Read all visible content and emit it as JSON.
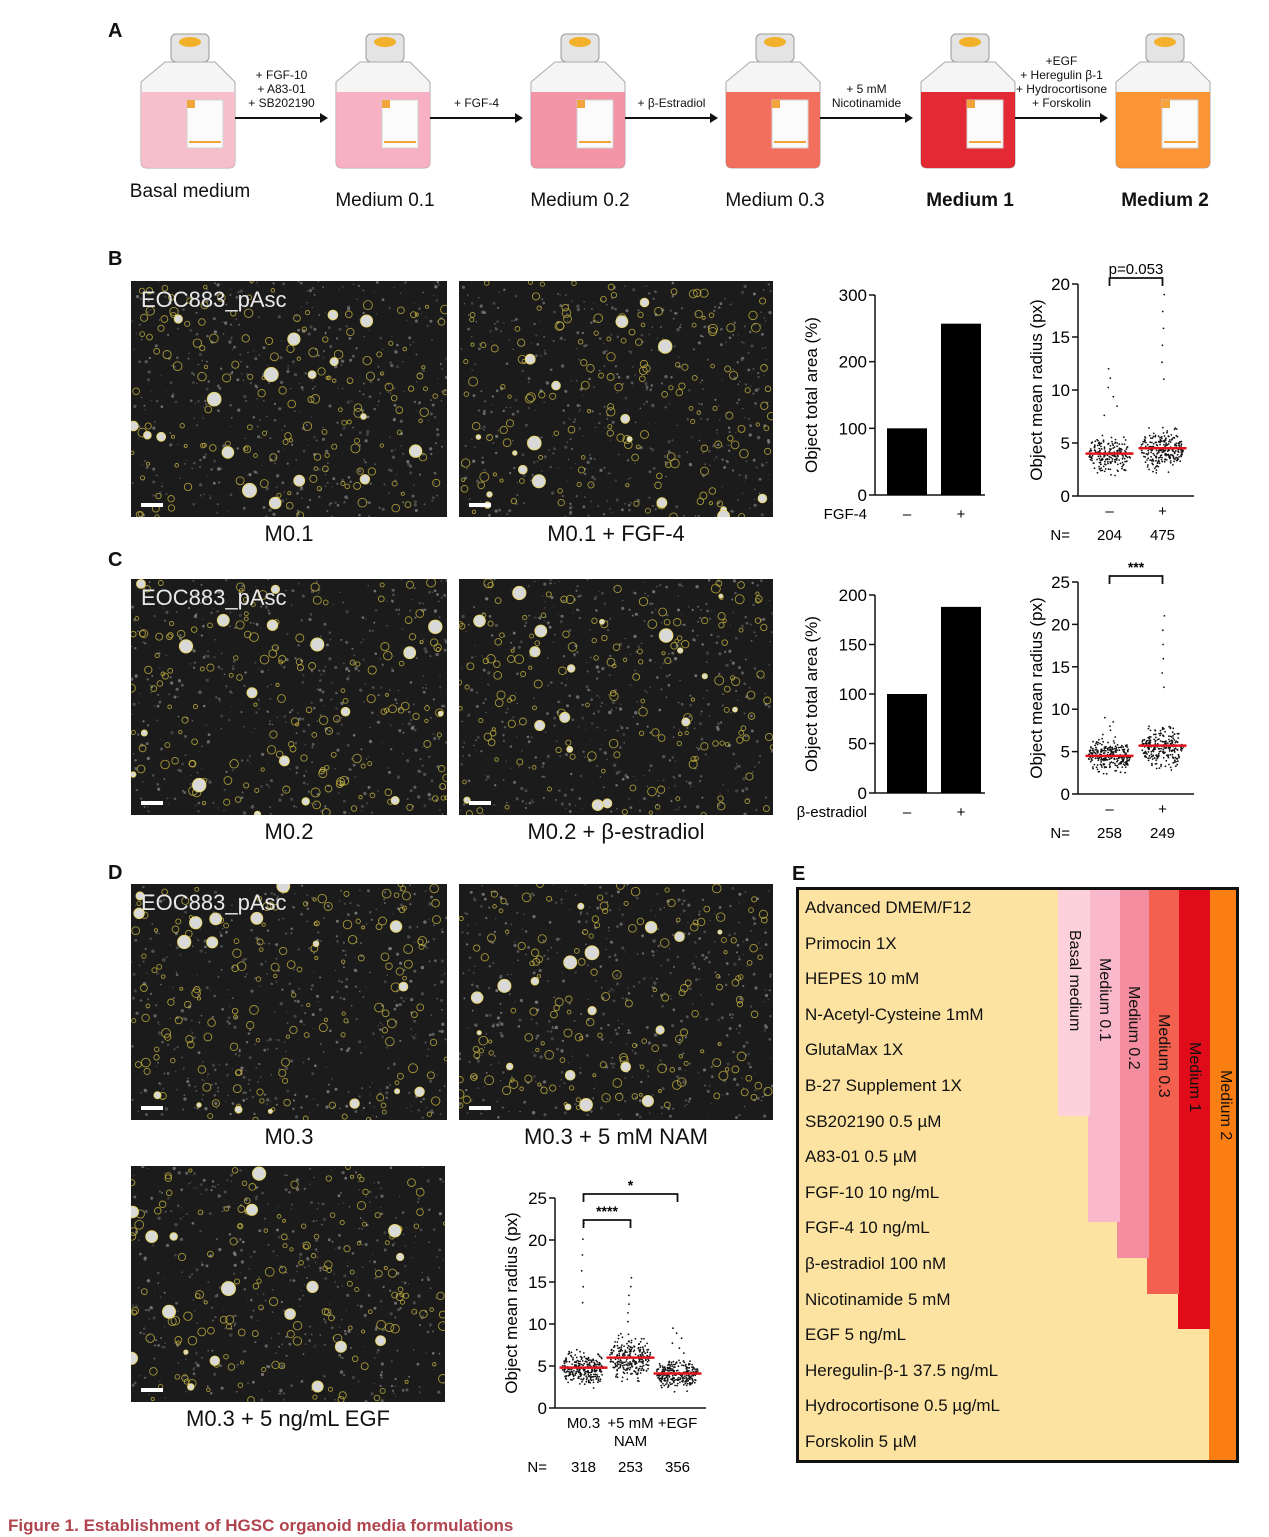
{
  "panel_labels": {
    "a": "A",
    "b": "B",
    "c": "C",
    "d": "D",
    "e": "E"
  },
  "panel_a": {
    "flasks": [
      {
        "label": "Basal medium",
        "color": "#f7b9c8",
        "bold": false
      },
      {
        "label": "Medium 0.1",
        "color": "#f7a9bf",
        "bold": false
      },
      {
        "label": "Medium 0.2",
        "color": "#f48a9f",
        "bold": false
      },
      {
        "label": "Medium 0.3",
        "color": "#f2604e",
        "bold": false
      },
      {
        "label": "Medium 1",
        "color": "#e1131f",
        "bold": true
      },
      {
        "label": "Medium 2",
        "color": "#fb8a1f",
        "bold": true
      }
    ],
    "arrows": [
      [
        "+ FGF-10",
        "+ A83-01",
        "+ SB202190"
      ],
      [
        "+ FGF-4"
      ],
      [
        "+ β-Estradiol"
      ],
      [
        "+ 5 mM",
        "Nicotinamide"
      ],
      [
        "+EGF",
        "+ Heregulin β-1",
        "+ Hydrocortisone",
        "+ Forskolin"
      ]
    ]
  },
  "panel_b": {
    "image_tag": "EOC883_pAsc",
    "captions": [
      "M0.1",
      "M0.1 + FGF-4"
    ]
  },
  "panel_c": {
    "image_tag": "EOC883_pAsc",
    "captions": [
      "M0.2",
      "M0.2 + β-estradiol"
    ]
  },
  "panel_d": {
    "image_tag": "EOC883_pAsc",
    "captions": [
      "M0.3",
      "M0.3 + 5 mM NAM",
      "M0.3 + 5 ng/mL EGF"
    ]
  },
  "panel_e": {
    "rows": [
      "Advanced DMEM/F12",
      "Primocin 1X",
      "HEPES 10 mM",
      "N-Acetyl-Cysteine 1mM",
      "GlutaMax 1X",
      "B-27 Supplement 1X",
      "SB202190 0.5 µM",
      "A83-01 0.5 µM",
      "FGF-10 10 ng/mL",
      "FGF-4 10 ng/mL",
      "β-estradiol 100 nM",
      "Nicotinamide 5 mM",
      "EGF 5 ng/mL",
      "Heregulin-β-1 37.5 ng/mL",
      "Hydrocortisone 0.5 µg/mL",
      "Forskolin 5 µM"
    ],
    "media": [
      {
        "name": "Basal medium",
        "color": "#fcd1dc",
        "rows_included": 6
      },
      {
        "name": "Medium 0.1",
        "color": "#f9b8cb",
        "rows_included": 9
      },
      {
        "name": "Medium 0.2",
        "color": "#f48d9f",
        "rows_included": 10
      },
      {
        "name": "Medium 0.3",
        "color": "#f3604f",
        "rows_included": 11
      },
      {
        "name": "Medium 1",
        "color": "#e10c19",
        "rows_included": 12
      },
      {
        "name": "Medium 2",
        "color": "#fb7e12",
        "rows_included": 16
      }
    ]
  },
  "caption": "Figure 1.  Establishment of HGSC organoid media formulations",
  "chart_data": [
    {
      "id": "B-area",
      "type": "bar",
      "ylabel": "Object total area (%)",
      "ylim": [
        0,
        300
      ],
      "yticks": [
        0,
        100,
        200,
        300
      ],
      "factor_label": "FGF-4",
      "categories": [
        "–",
        "+"
      ],
      "values": [
        100,
        257
      ]
    },
    {
      "id": "B-radius",
      "type": "scatter",
      "ylabel": "Object mean radius (px)",
      "ylim": [
        0,
        20
      ],
      "yticks": [
        0,
        5,
        10,
        15,
        20
      ],
      "categories": [
        "–",
        "+"
      ],
      "means": [
        4.0,
        4.5
      ],
      "max_values": [
        12,
        19
      ],
      "n_label": "N=",
      "n": [
        204,
        475
      ],
      "comparisons": [
        {
          "from": 0,
          "to": 1,
          "label": "p=0.053"
        }
      ]
    },
    {
      "id": "C-area",
      "type": "bar",
      "ylabel": "Object total area (%)",
      "ylim": [
        0,
        200
      ],
      "yticks": [
        0,
        50,
        100,
        150,
        200
      ],
      "factor_label": "β-estradiol",
      "categories": [
        "–",
        "+"
      ],
      "values": [
        100,
        188
      ]
    },
    {
      "id": "C-radius",
      "type": "scatter",
      "ylabel": "Object mean radius (px)",
      "ylim": [
        0,
        25
      ],
      "yticks": [
        0,
        5,
        10,
        15,
        20,
        25
      ],
      "categories": [
        "–",
        "+"
      ],
      "means": [
        4.5,
        5.7
      ],
      "max_values": [
        9,
        21
      ],
      "n_label": "N=",
      "n": [
        258,
        249
      ],
      "comparisons": [
        {
          "from": 0,
          "to": 1,
          "label": "***"
        }
      ]
    },
    {
      "id": "D-radius",
      "type": "scatter",
      "ylabel": "Object mean radius (px)",
      "ylim": [
        0,
        25
      ],
      "yticks": [
        0,
        5,
        10,
        15,
        20,
        25
      ],
      "categories": [
        "M0.3",
        "+5 mM\nNAM",
        "+EGF"
      ],
      "means": [
        4.8,
        6.0,
        4.1
      ],
      "max_values": [
        22,
        15.5,
        9.5
      ],
      "n_label": "N=",
      "n": [
        318,
        253,
        356
      ],
      "comparisons": [
        {
          "from": 0,
          "to": 1,
          "label": "****"
        },
        {
          "from": 0,
          "to": 2,
          "label": "*"
        }
      ]
    }
  ]
}
